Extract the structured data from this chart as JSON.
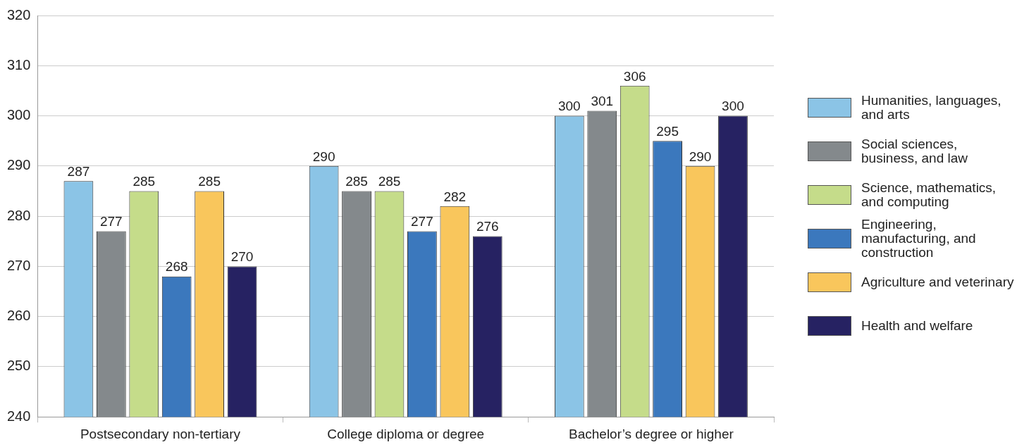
{
  "chart_data": {
    "type": "bar",
    "categories": [
      "Postsecondary non-tertiary",
      "College diploma or degree",
      "Bachelor’s degree or higher"
    ],
    "series": [
      {
        "name": "Humanities, languages, and arts",
        "color": "#8bc4e6",
        "values": [
          287,
          290,
          300
        ]
      },
      {
        "name": "Social sciences, business, and law",
        "color": "#84898c",
        "values": [
          277,
          285,
          301
        ]
      },
      {
        "name": "Science, mathematics, and computing",
        "color": "#c5dc8a",
        "values": [
          285,
          285,
          306
        ]
      },
      {
        "name": "Engineering, manufacturing, and construction",
        "color": "#3b78bd",
        "values": [
          268,
          277,
          295
        ]
      },
      {
        "name": "Agriculture and veterinary",
        "color": "#f9c65c",
        "values": [
          285,
          282,
          290
        ]
      },
      {
        "name": "Health and welfare",
        "color": "#262262",
        "values": [
          270,
          276,
          300
        ]
      }
    ],
    "ylim": [
      240,
      320
    ],
    "yticks": [
      240,
      250,
      260,
      270,
      280,
      290,
      300,
      310,
      320
    ],
    "grid": "y",
    "legend": "right",
    "data_labels": true
  }
}
